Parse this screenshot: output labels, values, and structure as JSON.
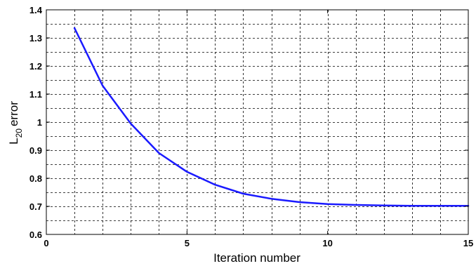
{
  "chart_data": {
    "type": "line",
    "xlabel": "Iteration number",
    "ylabel_main": "L",
    "ylabel_sub": "20",
    "ylabel_rest": "error",
    "xlim": [
      0,
      15
    ],
    "ylim": [
      0.6,
      1.4
    ],
    "xticks": [
      0,
      5,
      10,
      15
    ],
    "xtick_labels": [
      "0",
      "5",
      "10",
      "15"
    ],
    "yticks": [
      0.6,
      0.7,
      0.8,
      0.9,
      1.0,
      1.1,
      1.2,
      1.3,
      1.4
    ],
    "ytick_labels": [
      "0.6",
      "0.7",
      "0.8",
      "0.9",
      "1",
      "1.1",
      "1.2",
      "1.3",
      "1.4"
    ],
    "grid": true,
    "grid_style": "dashed",
    "minor_grid_x_step": 1,
    "minor_grid_y_step": 0.05,
    "series": [
      {
        "color": "#1a1aff",
        "x": [
          1,
          2,
          3,
          4,
          5,
          6,
          7,
          8,
          9,
          10,
          11,
          12,
          13,
          14,
          15
        ],
        "y": [
          1.335,
          1.13,
          0.995,
          0.89,
          0.823,
          0.777,
          0.745,
          0.727,
          0.715,
          0.708,
          0.705,
          0.703,
          0.702,
          0.702,
          0.702
        ]
      }
    ]
  }
}
